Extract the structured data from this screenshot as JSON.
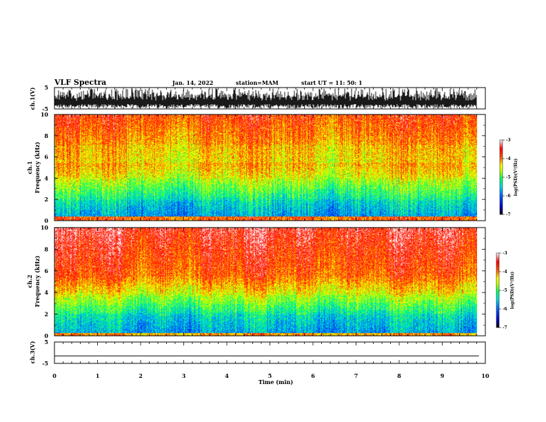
{
  "header": {
    "title": "VLF Spectra",
    "date": "Jan. 14, 2022",
    "station": "station=MAM",
    "start": "start  UT =   11: 50: 1"
  },
  "colors": {
    "axis": "#000000",
    "colormap": [
      "#000080",
      "#0000ff",
      "#00a0ff",
      "#00ffd0",
      "#40ff40",
      "#d0ff00",
      "#ffff00",
      "#ff8000",
      "#ff0000",
      "#ffffff"
    ]
  },
  "chart_data": [
    {
      "type": "line",
      "name": "waveform-ch1",
      "ylabel": "ch.1(V)",
      "ylim": [
        -5,
        5
      ],
      "yticks": [
        "5",
        "-5"
      ],
      "xlim": [
        0,
        10
      ]
    },
    {
      "type": "heatmap",
      "name": "spectrogram-ch1",
      "ylabel": "ch.1",
      "ylabel2": "Frequency (kHz)",
      "ylim": [
        0,
        10
      ],
      "yticks": [
        "0",
        "2",
        "4",
        "6",
        "8",
        "10"
      ],
      "xlim": [
        0,
        10
      ],
      "colorbar": {
        "label": "log(PSD)(V²/Hz)",
        "range": [
          -7,
          -3
        ],
        "ticks": [
          "-3",
          "-4",
          "-5",
          "-6",
          "-7"
        ]
      }
    },
    {
      "type": "heatmap",
      "name": "spectrogram-ch2",
      "ylabel": "ch.2",
      "ylabel2": "Frequency (kHz)",
      "ylim": [
        0,
        10
      ],
      "yticks": [
        "0",
        "2",
        "4",
        "6",
        "8",
        "10"
      ],
      "xlim": [
        0,
        10
      ],
      "colorbar": {
        "label": "log(PSD)(V²/Hz)",
        "range": [
          -7,
          -3
        ],
        "ticks": [
          "-3",
          "-4",
          "-5",
          "-6",
          "-7"
        ]
      }
    },
    {
      "type": "line",
      "name": "waveform-ch3",
      "ylabel": "ch.3(V)",
      "ylim": [
        -5,
        5
      ],
      "yticks": [
        "5",
        "-5"
      ],
      "xlim": [
        0,
        10
      ],
      "x": [
        0,
        9.85
      ],
      "y": [
        -1.5,
        -1.5
      ]
    }
  ],
  "xaxis": {
    "label": "Time (min)",
    "ticks": [
      "0",
      "1",
      "2",
      "3",
      "4",
      "5",
      "6",
      "7",
      "8",
      "9",
      "10"
    ]
  }
}
